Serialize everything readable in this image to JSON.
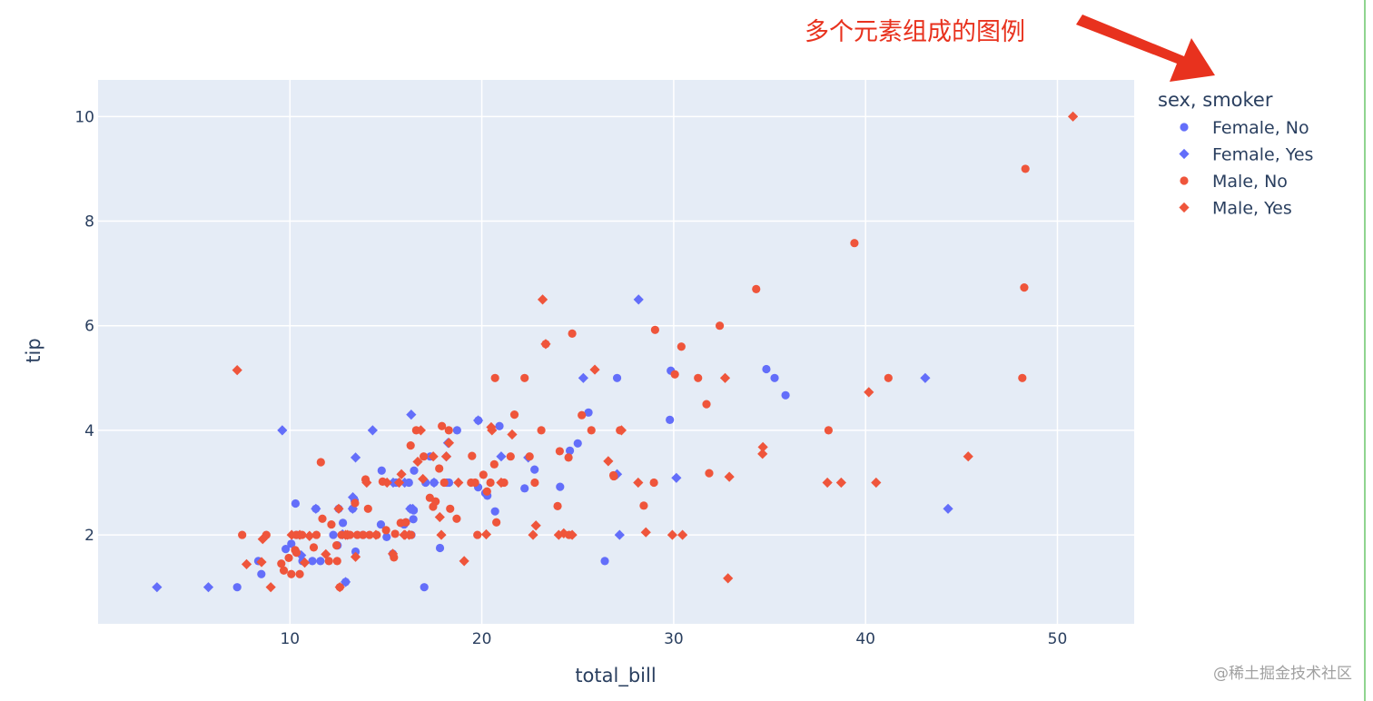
{
  "annotation": {
    "text": "多个元素组成的图例",
    "color": "#e8321e"
  },
  "watermark": "@稀土掘金技术社区",
  "colors": {
    "plot_bg": "#e5ecf6",
    "grid": "#ffffff",
    "female": "#636efa",
    "male": "#ef553b",
    "text": "#2a3f5f"
  },
  "chart_data": {
    "type": "scatter",
    "title": "",
    "xlabel": "total_bill",
    "ylabel": "tip",
    "xlim": [
      0,
      54
    ],
    "ylim": [
      0.3,
      10.7
    ],
    "grid": true,
    "x_ticks": [
      10,
      20,
      30,
      40,
      50
    ],
    "y_ticks": [
      2,
      4,
      6,
      8,
      10
    ],
    "legend": {
      "title": "sex, smoker",
      "position": "top-right"
    },
    "series": [
      {
        "name": "Female, No",
        "color": "#636efa",
        "marker": "circle",
        "points": [
          [
            7.25,
            1.0
          ],
          [
            8.51,
            1.25
          ],
          [
            8.35,
            1.5
          ],
          [
            9.78,
            1.73
          ],
          [
            10.07,
            1.83
          ],
          [
            10.33,
            1.67
          ],
          [
            10.29,
            2.6
          ],
          [
            10.65,
            1.5
          ],
          [
            10.34,
            2.0
          ],
          [
            11.35,
            2.5
          ],
          [
            11.17,
            1.5
          ],
          [
            11.59,
            1.5
          ],
          [
            12.54,
            2.5
          ],
          [
            12.48,
            1.8
          ],
          [
            12.76,
            2.23
          ],
          [
            12.9,
            1.1
          ],
          [
            13.27,
            2.5
          ],
          [
            13.42,
            1.68
          ],
          [
            13.0,
            2.0
          ],
          [
            13.81,
            2.0
          ],
          [
            14.78,
            3.23
          ],
          [
            15.04,
            1.96
          ],
          [
            15.36,
            1.64
          ],
          [
            15.53,
            3.0
          ],
          [
            16.04,
            2.24
          ],
          [
            16.43,
            2.3
          ],
          [
            16.47,
            3.23
          ],
          [
            16.29,
            2.5
          ],
          [
            16.45,
            2.47
          ],
          [
            17.07,
            3.0
          ],
          [
            17.31,
            3.5
          ],
          [
            17.82,
            1.75
          ],
          [
            18.29,
            3.0
          ],
          [
            18.71,
            4.0
          ],
          [
            19.82,
            4.19
          ],
          [
            19.81,
            2.91
          ],
          [
            20.29,
            2.75
          ],
          [
            20.69,
            2.45
          ],
          [
            20.92,
            4.08
          ],
          [
            22.23,
            2.89
          ],
          [
            22.75,
            3.25
          ],
          [
            24.08,
            2.92
          ],
          [
            24.59,
            3.61
          ],
          [
            25.56,
            4.34
          ],
          [
            26.41,
            1.5
          ],
          [
            27.05,
            5.0
          ],
          [
            29.85,
            5.14
          ],
          [
            29.8,
            4.2
          ],
          [
            34.83,
            5.17
          ],
          [
            35.26,
            5.0
          ],
          [
            35.83,
            4.67
          ],
          [
            17.0,
            1.0
          ],
          [
            17.51,
            3.0
          ],
          [
            14.74,
            2.2
          ],
          [
            12.26,
            2.0
          ],
          [
            16.2,
            3.0
          ],
          [
            18.18,
            3.0
          ],
          [
            20.18,
            2.8
          ],
          [
            25.0,
            3.75
          ],
          [
            13.37,
            2.66
          ],
          [
            15.95,
            2.2
          ],
          [
            16.33,
            2.0
          ]
        ]
      },
      {
        "name": "Female, Yes",
        "color": "#636efa",
        "marker": "diamond",
        "points": [
          [
            3.07,
            1.0
          ],
          [
            5.75,
            1.0
          ],
          [
            9.6,
            4.0
          ],
          [
            10.59,
            1.61
          ],
          [
            11.35,
            2.5
          ],
          [
            12.74,
            2.01
          ],
          [
            12.9,
            1.1
          ],
          [
            13.27,
            2.5
          ],
          [
            13.42,
            3.48
          ],
          [
            13.28,
            2.72
          ],
          [
            14.31,
            4.0
          ],
          [
            16.27,
            2.5
          ],
          [
            16.32,
            4.3
          ],
          [
            17.51,
            3.0
          ],
          [
            18.24,
            3.76
          ],
          [
            19.81,
            4.19
          ],
          [
            21.01,
            3.5
          ],
          [
            22.42,
            3.48
          ],
          [
            25.29,
            5.0
          ],
          [
            27.05,
            3.16
          ],
          [
            27.18,
            2.0
          ],
          [
            28.17,
            6.5
          ],
          [
            30.14,
            3.09
          ],
          [
            43.11,
            5.0
          ],
          [
            44.3,
            2.5
          ],
          [
            15.38,
            3.0
          ],
          [
            15.98,
            3.0
          ],
          [
            16.4,
            2.5
          ],
          [
            18.15,
            3.5
          ]
        ]
      },
      {
        "name": "Male, No",
        "color": "#ef553b",
        "marker": "circle",
        "points": [
          [
            7.51,
            2.0
          ],
          [
            8.77,
            2.0
          ],
          [
            9.55,
            1.45
          ],
          [
            9.68,
            1.32
          ],
          [
            9.94,
            1.56
          ],
          [
            10.27,
            1.71
          ],
          [
            10.33,
            2.0
          ],
          [
            10.34,
            1.66
          ],
          [
            10.51,
            1.25
          ],
          [
            10.63,
            2.0
          ],
          [
            11.24,
            1.76
          ],
          [
            11.61,
            3.39
          ],
          [
            11.69,
            2.31
          ],
          [
            12.03,
            1.5
          ],
          [
            12.46,
            1.5
          ],
          [
            12.69,
            2.0
          ],
          [
            13.03,
            2.0
          ],
          [
            13.13,
            2.0
          ],
          [
            13.51,
            2.0
          ],
          [
            13.94,
            3.06
          ],
          [
            14.07,
            2.5
          ],
          [
            14.52,
            2.0
          ],
          [
            14.83,
            3.02
          ],
          [
            15.01,
            2.09
          ],
          [
            15.48,
            2.02
          ],
          [
            15.77,
            2.23
          ],
          [
            16.04,
            2.24
          ],
          [
            16.29,
            3.71
          ],
          [
            16.58,
            4.0
          ],
          [
            16.97,
            3.5
          ],
          [
            17.29,
            2.71
          ],
          [
            17.78,
            3.27
          ],
          [
            17.92,
            4.08
          ],
          [
            18.28,
            4.0
          ],
          [
            18.35,
            2.5
          ],
          [
            18.69,
            2.31
          ],
          [
            19.44,
            3.0
          ],
          [
            19.65,
            3.0
          ],
          [
            20.08,
            3.15
          ],
          [
            20.27,
            2.83
          ],
          [
            20.65,
            3.35
          ],
          [
            20.69,
            5.0
          ],
          [
            20.76,
            2.24
          ],
          [
            21.16,
            3.0
          ],
          [
            21.5,
            3.5
          ],
          [
            21.7,
            4.3
          ],
          [
            22.49,
            3.5
          ],
          [
            22.76,
            3.0
          ],
          [
            23.33,
            5.65
          ],
          [
            23.95,
            2.55
          ],
          [
            24.06,
            3.6
          ],
          [
            24.52,
            3.48
          ],
          [
            24.71,
            5.85
          ],
          [
            25.21,
            4.29
          ],
          [
            25.71,
            4.0
          ],
          [
            26.88,
            3.12
          ],
          [
            27.2,
            4.0
          ],
          [
            28.44,
            2.56
          ],
          [
            28.97,
            3.0
          ],
          [
            29.03,
            5.92
          ],
          [
            30.4,
            5.6
          ],
          [
            31.27,
            5.0
          ],
          [
            31.85,
            3.18
          ],
          [
            32.4,
            6.0
          ],
          [
            34.3,
            6.7
          ],
          [
            38.07,
            4.0
          ],
          [
            39.42,
            7.58
          ],
          [
            41.19,
            5.0
          ],
          [
            48.17,
            5.0
          ],
          [
            48.27,
            6.73
          ],
          [
            48.33,
            9.0
          ],
          [
            11.38,
            2.0
          ],
          [
            12.43,
            1.8
          ],
          [
            13.39,
            2.61
          ],
          [
            14.15,
            2.0
          ],
          [
            15.42,
            1.57
          ],
          [
            17.46,
            2.54
          ],
          [
            19.49,
            3.51
          ],
          [
            22.23,
            5.0
          ],
          [
            24.55,
            2.0
          ],
          [
            30.06,
            5.07
          ],
          [
            31.71,
            4.5
          ],
          [
            12.16,
            2.2
          ],
          [
            13.81,
            2.0
          ],
          [
            16.31,
            2.0
          ],
          [
            17.59,
            2.64
          ],
          [
            18.04,
            3.0
          ],
          [
            19.77,
            2.0
          ],
          [
            20.45,
            3.0
          ],
          [
            23.1,
            4.0
          ],
          [
            26.86,
            3.14
          ],
          [
            10.07,
            1.25
          ],
          [
            12.6,
            1.0
          ]
        ]
      },
      {
        "name": "Male, Yes",
        "color": "#ef553b",
        "marker": "diamond",
        "points": [
          [
            7.25,
            5.15
          ],
          [
            7.74,
            1.44
          ],
          [
            8.58,
            1.92
          ],
          [
            9.0,
            1.0
          ],
          [
            10.09,
            2.0
          ],
          [
            10.77,
            1.47
          ],
          [
            11.02,
            1.98
          ],
          [
            11.87,
            1.63
          ],
          [
            12.9,
            2.0
          ],
          [
            13.0,
            2.0
          ],
          [
            13.42,
            1.58
          ],
          [
            14.0,
            3.0
          ],
          [
            15.36,
            1.64
          ],
          [
            15.69,
            3.0
          ],
          [
            15.81,
            3.16
          ],
          [
            16.0,
            2.0
          ],
          [
            16.21,
            2.0
          ],
          [
            16.66,
            3.4
          ],
          [
            16.82,
            4.0
          ],
          [
            17.47,
            3.5
          ],
          [
            17.89,
            2.0
          ],
          [
            18.15,
            3.5
          ],
          [
            18.29,
            3.76
          ],
          [
            18.78,
            3.0
          ],
          [
            19.08,
            1.5
          ],
          [
            20.49,
            4.06
          ],
          [
            20.53,
            4.0
          ],
          [
            21.58,
            3.92
          ],
          [
            22.82,
            2.18
          ],
          [
            23.17,
            6.5
          ],
          [
            23.33,
            5.65
          ],
          [
            24.27,
            2.03
          ],
          [
            25.89,
            5.16
          ],
          [
            27.28,
            4.0
          ],
          [
            28.15,
            3.0
          ],
          [
            29.93,
            2.0
          ],
          [
            30.46,
            2.0
          ],
          [
            32.68,
            5.0
          ],
          [
            32.83,
            1.17
          ],
          [
            34.63,
            3.55
          ],
          [
            34.65,
            3.68
          ],
          [
            38.73,
            3.0
          ],
          [
            40.17,
            4.73
          ],
          [
            40.55,
            3.0
          ],
          [
            45.35,
            3.5
          ],
          [
            50.81,
            10.0
          ],
          [
            12.6,
            1.0
          ],
          [
            15.06,
            3.0
          ],
          [
            15.95,
            2.0
          ],
          [
            17.81,
            2.34
          ],
          [
            22.67,
            2.0
          ],
          [
            24.01,
            2.0
          ],
          [
            28.55,
            2.05
          ],
          [
            32.9,
            3.11
          ],
          [
            38.01,
            3.0
          ],
          [
            14.48,
            2.0
          ],
          [
            16.93,
            3.07
          ],
          [
            20.23,
            2.01
          ],
          [
            21.01,
            3.0
          ],
          [
            24.71,
            2.0
          ],
          [
            8.52,
            1.48
          ],
          [
            10.51,
            2.0
          ],
          [
            12.54,
            2.5
          ],
          [
            26.59,
            3.41
          ],
          [
            11.02,
            1.98
          ]
        ]
      }
    ]
  }
}
